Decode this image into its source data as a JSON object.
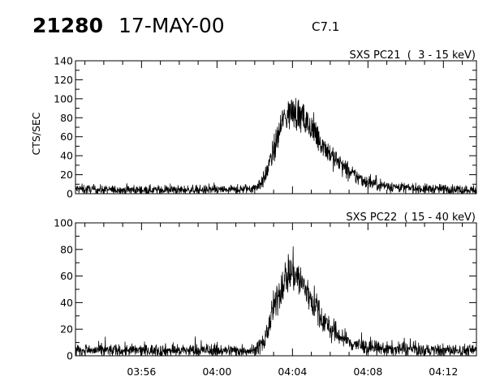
{
  "header": {
    "event_id": "21280",
    "date": "17-MAY-00",
    "flare_class": "C7.1"
  },
  "chart_data": [
    {
      "type": "line",
      "title": "SXS PC21  (  3 - 15 keV)",
      "ylabel": "CTS/SEC",
      "xlabel": "",
      "ylim": [
        0,
        140
      ],
      "y_ticks": [
        0,
        20,
        40,
        60,
        80,
        100,
        120,
        140
      ],
      "xlim": [
        "03:52:30",
        "04:13:45"
      ],
      "x_ticks": [
        "03:56",
        "04:00",
        "04:04",
        "04:08",
        "04:12"
      ],
      "x_tick_labels_shown": false,
      "grid": false,
      "series": [
        {
          "x": [
            "03:52:30",
            "03:54:00",
            "03:56:00",
            "03:58:00",
            "04:00:00",
            "04:01:00",
            "04:02:00",
            "04:02:30",
            "04:03:00",
            "04:03:30",
            "04:03:45",
            "04:04:00",
            "04:04:15",
            "04:04:30",
            "04:05:00",
            "04:05:30",
            "04:06:00",
            "04:07:00",
            "04:08:00",
            "04:09:00",
            "04:10:00",
            "04:11:00",
            "04:12:00",
            "04:13:45"
          ],
          "values": [
            5,
            4,
            4,
            4,
            4,
            4,
            6,
            15,
            45,
            78,
            85,
            86,
            84,
            80,
            68,
            55,
            42,
            22,
            12,
            8,
            6,
            5,
            5,
            4
          ]
        }
      ]
    },
    {
      "type": "line",
      "title": "SXS PC22  ( 15 - 40 keV)",
      "ylabel": "",
      "xlabel": "",
      "ylim": [
        0,
        100
      ],
      "y_ticks": [
        0,
        20,
        40,
        60,
        80,
        100
      ],
      "xlim": [
        "03:52:30",
        "04:13:45"
      ],
      "x_ticks": [
        "03:56",
        "04:00",
        "04:04",
        "04:08",
        "04:12"
      ],
      "x_tick_labels_shown": true,
      "grid": false,
      "series": [
        {
          "x": [
            "03:52:30",
            "03:54:00",
            "03:56:00",
            "03:58:00",
            "04:00:00",
            "04:01:00",
            "04:02:00",
            "04:02:30",
            "04:03:00",
            "04:03:30",
            "04:03:45",
            "04:04:00",
            "04:04:15",
            "04:04:30",
            "04:05:00",
            "04:05:30",
            "04:06:00",
            "04:07:00",
            "04:08:00",
            "04:09:00",
            "04:10:00",
            "04:11:00",
            "04:12:00",
            "04:13:45"
          ],
          "values": [
            4,
            4,
            4,
            4,
            4,
            4,
            4,
            10,
            35,
            55,
            62,
            63,
            60,
            54,
            43,
            30,
            20,
            10,
            6,
            5,
            5,
            4,
            4,
            4
          ]
        }
      ]
    }
  ]
}
